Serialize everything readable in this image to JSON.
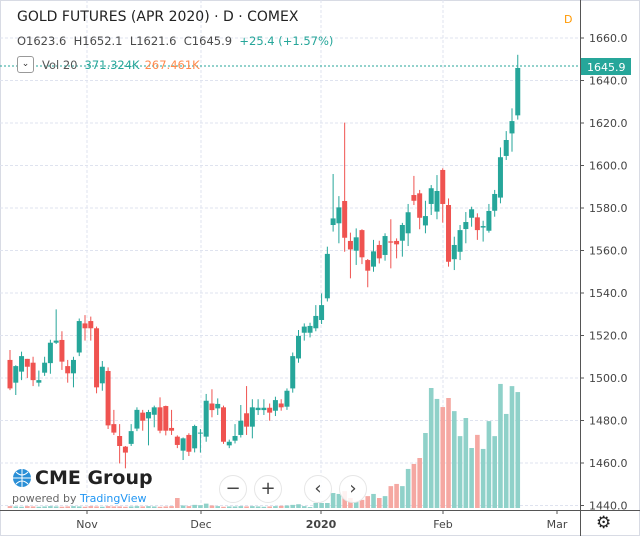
{
  "header": {
    "title": "GOLD FUTURES (APR 2020) · D · COMEX",
    "open": "O1623.6",
    "high": "H1652.1",
    "low": "L1621.6",
    "close": "C1645.9",
    "change": "+25.4 (+1.57%)",
    "interval_badge": "D"
  },
  "volume_legend": {
    "label": "Vol 20",
    "value": "371.324K",
    "ma_value": "267.461K",
    "toggle": "⌄"
  },
  "logo": {
    "brand": "CME Group",
    "powered_by": "powered by",
    "provider": "TradingView"
  },
  "controls": {
    "zoom_out": "−",
    "zoom_in": "+",
    "scroll_left": "‹",
    "scroll_right": "›",
    "settings": "⚙"
  },
  "colors": {
    "up": "#26a69a",
    "down": "#ef5350",
    "vol_up": "#8fd1c9",
    "vol_down": "#f5a8a2",
    "last_price": "#26a69a"
  },
  "chart_data": {
    "type": "candlestick",
    "title": "GOLD FUTURES (APR 2020) · D · COMEX",
    "ylim": [
      1435,
      1668
    ],
    "y_ticks": [
      "1660.0",
      "1640.0",
      "1620.0",
      "1600.0",
      "1580.0",
      "1560.0",
      "1540.0",
      "1520.0",
      "1500.0",
      "1480.0",
      "1460.0",
      "1440.0"
    ],
    "x_ticks": [
      "Nov",
      "Dec",
      "2020",
      "Feb",
      "Mar"
    ],
    "last_price": "1645.9",
    "ohlc": [
      [
        1508.5,
        1513.2,
        1494.3,
        1495.1
      ],
      [
        1497.8,
        1506,
        1492,
        1505.6
      ],
      [
        1503,
        1512.4,
        1499,
        1510.3
      ],
      [
        1509,
        1509,
        1500,
        1505.3
      ],
      [
        1507.2,
        1510,
        1496.2,
        1499
      ],
      [
        1497.8,
        1503.5,
        1496,
        1499
      ],
      [
        1502.5,
        1510,
        1501,
        1507.2
      ],
      [
        1507,
        1518,
        1502,
        1516.6
      ],
      [
        1516.6,
        1532.3,
        1516,
        1517.6
      ],
      [
        1517.9,
        1522,
        1503.8,
        1507.7
      ],
      [
        1505.6,
        1508.5,
        1497.8,
        1502.2
      ],
      [
        1502.2,
        1510,
        1495.6,
        1508.5
      ],
      [
        1512,
        1528,
        1510.3,
        1526.8
      ],
      [
        1525.7,
        1529.6,
        1517.6,
        1523.4
      ],
      [
        1526.8,
        1528.9,
        1517.6,
        1523.4
      ],
      [
        1523.4,
        1524.2,
        1492.8,
        1495.6
      ],
      [
        1497.5,
        1508,
        1494,
        1505.3
      ],
      [
        1503.3,
        1505,
        1476,
        1477.7
      ],
      [
        1478.3,
        1485,
        1473.2,
        1474.3
      ],
      [
        1472.7,
        1478.3,
        1459.8,
        1468
      ],
      [
        1467.7,
        1468,
        1457.5,
        1464.9
      ],
      [
        1469,
        1478.3,
        1468,
        1475
      ],
      [
        1476.2,
        1486.2,
        1475,
        1485
      ],
      [
        1483.7,
        1485,
        1475.2,
        1479.9
      ],
      [
        1481,
        1485,
        1468.3,
        1484
      ],
      [
        1482.7,
        1487,
        1476.8,
        1486.2
      ],
      [
        1486.2,
        1490.9,
        1474,
        1475.2
      ],
      [
        1486.8,
        1487,
        1473,
        1475.2
      ],
      [
        1476.5,
        1485,
        1473.2,
        1475.2
      ],
      [
        1472.4,
        1473,
        1467,
        1468.5
      ],
      [
        1465.8,
        1472,
        1461.4,
        1471.6
      ],
      [
        1473.2,
        1474,
        1463.3,
        1465.3
      ],
      [
        1466.9,
        1478,
        1465,
        1477.4
      ],
      [
        1473.9,
        1476,
        1464.9,
        1474.3
      ],
      [
        1472.4,
        1492.5,
        1470,
        1489.3
      ],
      [
        1488,
        1494.7,
        1481.5,
        1484.9
      ],
      [
        1485.7,
        1490.4,
        1482.6,
        1487.8
      ],
      [
        1486.2,
        1487,
        1469,
        1470
      ],
      [
        1468.3,
        1471,
        1467,
        1470
      ],
      [
        1470.5,
        1478.3,
        1469.2,
        1472.7
      ],
      [
        1473.2,
        1487.3,
        1472,
        1479.9
      ],
      [
        1483.4,
        1496.2,
        1473.2,
        1477.1
      ],
      [
        1477.1,
        1490,
        1471.6,
        1486.2
      ],
      [
        1484.9,
        1490,
        1482.6,
        1486
      ],
      [
        1484.9,
        1490,
        1482.6,
        1486
      ],
      [
        1486,
        1488,
        1479.9,
        1483.7
      ],
      [
        1484.6,
        1491.2,
        1482.1,
        1489.6
      ],
      [
        1488,
        1490,
        1484.6,
        1486.2
      ],
      [
        1486.5,
        1495.1,
        1485,
        1494
      ],
      [
        1495.1,
        1512,
        1493.1,
        1510.3
      ],
      [
        1509.2,
        1522.6,
        1507.2,
        1519.8
      ],
      [
        1521.3,
        1525.7,
        1517.6,
        1524.2
      ],
      [
        1521.3,
        1526,
        1519.1,
        1524.5
      ],
      [
        1523.4,
        1534.3,
        1522,
        1529.2
      ],
      [
        1527.3,
        1539.8,
        1525.4,
        1534.3
      ],
      [
        1537.5,
        1561.8,
        1536,
        1558.4
      ],
      [
        1572,
        1596,
        1568.9,
        1575.1
      ],
      [
        1572.8,
        1585.6,
        1563.4,
        1580.3
      ],
      [
        1583.3,
        1620.2,
        1559.4,
        1566
      ],
      [
        1564.5,
        1568.4,
        1546.9,
        1560.5
      ],
      [
        1559.9,
        1570.4,
        1553.2,
        1566.2
      ],
      [
        1569.6,
        1570,
        1553.6,
        1556.8
      ],
      [
        1555.5,
        1556,
        1542.7,
        1550.5
      ],
      [
        1552.4,
        1565,
        1550,
        1559.6
      ],
      [
        1562.6,
        1564.6,
        1553.9,
        1556.3
      ],
      [
        1557.9,
        1568.1,
        1555.2,
        1566.8
      ],
      [
        1564.3,
        1574.7,
        1551.6,
        1563.7
      ],
      [
        1564.5,
        1565.7,
        1556.3,
        1562.9
      ],
      [
        1564.6,
        1573,
        1557.1,
        1572
      ],
      [
        1568.1,
        1581.9,
        1562.1,
        1578
      ],
      [
        1586.1,
        1595.1,
        1581.4,
        1583.4
      ],
      [
        1586.9,
        1588.5,
        1570,
        1575.4
      ],
      [
        1571.8,
        1583.4,
        1568.1,
        1576.2
      ],
      [
        1581.9,
        1590.8,
        1576.7,
        1589.3
      ],
      [
        1578.3,
        1595.5,
        1574.7,
        1588
      ],
      [
        1597.9,
        1598.7,
        1573.1,
        1581.9
      ],
      [
        1581.4,
        1584.5,
        1552.4,
        1554.7
      ],
      [
        1555.9,
        1566.5,
        1550.8,
        1562.6
      ],
      [
        1559.4,
        1572,
        1555.5,
        1569.6
      ],
      [
        1570.1,
        1578.1,
        1563.4,
        1573.4
      ],
      [
        1575.4,
        1580.6,
        1571.2,
        1579.4
      ],
      [
        1575.6,
        1577.5,
        1565,
        1569.6
      ],
      [
        1570.8,
        1574,
        1564.2,
        1571.5
      ],
      [
        1569.3,
        1581.9,
        1568.4,
        1578.6
      ],
      [
        1578.7,
        1588.5,
        1575.9,
        1586.6
      ],
      [
        1584.9,
        1608.5,
        1582.2,
        1603.9
      ],
      [
        1604.5,
        1616.2,
        1602.6,
        1612
      ],
      [
        1615.1,
        1626.9,
        1606.5,
        1620.9
      ],
      [
        1623.6,
        1652.1,
        1621.6,
        1645.9
      ]
    ],
    "volume_k": [
      6,
      5,
      4,
      6,
      5,
      4,
      5,
      6,
      5,
      4,
      5,
      6,
      5,
      4,
      6,
      5,
      4,
      6,
      5,
      5,
      4,
      5,
      6,
      5,
      6,
      5,
      4,
      5,
      6,
      32,
      8,
      6,
      10,
      9,
      14,
      8,
      6,
      4,
      5,
      5,
      6,
      5,
      6,
      5,
      4,
      5,
      6,
      7,
      8,
      10,
      12,
      6,
      3,
      16,
      16,
      16,
      48,
      45,
      54,
      32,
      19,
      26,
      38,
      45,
      32,
      38,
      70,
      77,
      70,
      125,
      141,
      160,
      240,
      384,
      349,
      323,
      352,
      310,
      230,
      288,
      192,
      234,
      189,
      278,
      230,
      397,
      301,
      390,
      371
    ]
  }
}
